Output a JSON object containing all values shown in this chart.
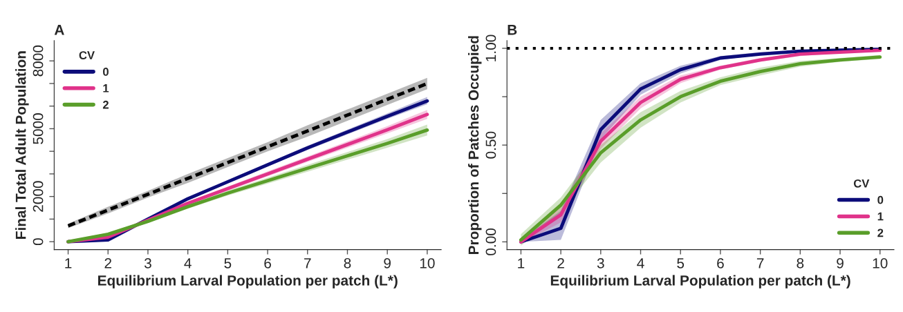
{
  "chart_data": [
    {
      "type": "line",
      "title": "A",
      "xlabel": "Equilibrium Larval Population per patch (L*)",
      "ylabel": "Final Total Adult Population",
      "legend_title": "CV",
      "legend": "top left",
      "grid": false,
      "marker": "none",
      "x": [
        1,
        2,
        3,
        4,
        5,
        6,
        7,
        8,
        9,
        10
      ],
      "xlim": [
        0.65,
        10.35
      ],
      "xticks": [
        1,
        2,
        3,
        4,
        5,
        6,
        7,
        8,
        9,
        10
      ],
      "ylim": [
        -350,
        8900
      ],
      "yticks": [
        0,
        {
          "value": 1000,
          "label": null
        },
        2000,
        {
          "value": 3000,
          "label": null
        },
        {
          "value": 4000,
          "label": null
        },
        5000,
        {
          "value": 6000,
          "label": null
        },
        {
          "value": 7000,
          "label": null
        },
        8000
      ],
      "series": [
        {
          "color": "#000000",
          "line_style": "dashed",
          "values": [
            700,
            1400,
            2100,
            2800,
            3500,
            4200,
            4900,
            5600,
            6300,
            7000
          ],
          "lower": [
            600,
            1250,
            1950,
            2600,
            3300,
            4000,
            4650,
            5350,
            6050,
            6750
          ],
          "upper": [
            800,
            1550,
            2250,
            3000,
            3700,
            4400,
            5150,
            5850,
            6550,
            7250
          ]
        },
        {
          "name": "0",
          "color": "#0c0c7a",
          "values": [
            0,
            80,
            1000,
            1900,
            2650,
            3400,
            4150,
            4850,
            5550,
            6230
          ],
          "lower": [
            -50,
            30,
            950,
            1850,
            2600,
            3330,
            4060,
            4750,
            5430,
            6080
          ],
          "upper": [
            50,
            130,
            1050,
            1970,
            2720,
            3480,
            4240,
            4960,
            5680,
            6400
          ]
        },
        {
          "name": "1",
          "color": "#e0338a",
          "values": [
            0,
            200,
            950,
            1700,
            2350,
            3000,
            3650,
            4300,
            4950,
            5630
          ],
          "lower": [
            -50,
            140,
            890,
            1630,
            2260,
            2890,
            3530,
            4160,
            4790,
            5430
          ],
          "upper": [
            50,
            260,
            1010,
            1770,
            2440,
            3110,
            3770,
            4440,
            5110,
            5830
          ]
        },
        {
          "name": "2",
          "color": "#5a9e2a",
          "values": [
            0,
            330,
            900,
            1550,
            2150,
            2700,
            3250,
            3800,
            4350,
            4940
          ],
          "lower": [
            -50,
            270,
            830,
            1460,
            2040,
            2570,
            3100,
            3630,
            4160,
            4700
          ],
          "upper": [
            50,
            390,
            970,
            1640,
            2260,
            2830,
            3400,
            3970,
            4540,
            5180
          ]
        }
      ]
    },
    {
      "type": "line",
      "title": "B",
      "xlabel": "Equilibrium Larval Population per patch (L*)",
      "ylabel": "Proportion of Patches Occupied",
      "legend_title": "CV",
      "legend": "bottom right",
      "grid": false,
      "marker": "none",
      "x": [
        1,
        2,
        3,
        4,
        5,
        6,
        7,
        8,
        9,
        10
      ],
      "xlim": [
        0.65,
        10.35
      ],
      "xticks": [
        1,
        2,
        3,
        4,
        5,
        6,
        7,
        8,
        9,
        10
      ],
      "ylim": [
        -0.04,
        1.04
      ],
      "yticks": [
        {
          "value": 0,
          "label": "0.00"
        },
        {
          "value": 0.25,
          "label": null
        },
        {
          "value": 0.5,
          "label": "0.50"
        },
        {
          "value": 0.75,
          "label": null
        },
        {
          "value": 1,
          "label": "1.00"
        }
      ],
      "ref_lines": [
        {
          "axis": "y",
          "value": 1,
          "color": "#000000",
          "line_style": "dotted"
        }
      ],
      "series": [
        {
          "name": "0",
          "color": "#0c0c7a",
          "values": [
            0,
            0.07,
            0.58,
            0.79,
            0.89,
            0.95,
            0.97,
            0.985,
            0.99,
            0.995
          ],
          "lower": [
            0,
            0.01,
            0.53,
            0.76,
            0.87,
            0.94,
            0.965,
            0.98,
            0.985,
            0.99
          ],
          "upper": [
            0.01,
            0.16,
            0.63,
            0.82,
            0.91,
            0.96,
            0.98,
            0.99,
            0.995,
            1.0
          ]
        },
        {
          "name": "1",
          "color": "#e0338a",
          "values": [
            0,
            0.14,
            0.52,
            0.72,
            0.84,
            0.9,
            0.94,
            0.97,
            0.98,
            0.99
          ],
          "lower": [
            -0.01,
            0.1,
            0.48,
            0.69,
            0.82,
            0.89,
            0.93,
            0.96,
            0.975,
            0.985
          ],
          "upper": [
            0.01,
            0.18,
            0.56,
            0.75,
            0.86,
            0.91,
            0.95,
            0.975,
            0.985,
            0.995
          ]
        },
        {
          "name": "2",
          "color": "#5a9e2a",
          "values": [
            0.01,
            0.19,
            0.46,
            0.63,
            0.75,
            0.83,
            0.88,
            0.92,
            0.94,
            0.955
          ],
          "lower": [
            -0.02,
            0.15,
            0.41,
            0.59,
            0.72,
            0.81,
            0.86,
            0.905,
            0.93,
            0.945
          ],
          "upper": [
            0.04,
            0.23,
            0.5,
            0.67,
            0.78,
            0.85,
            0.9,
            0.935,
            0.95,
            0.965
          ]
        }
      ]
    }
  ]
}
